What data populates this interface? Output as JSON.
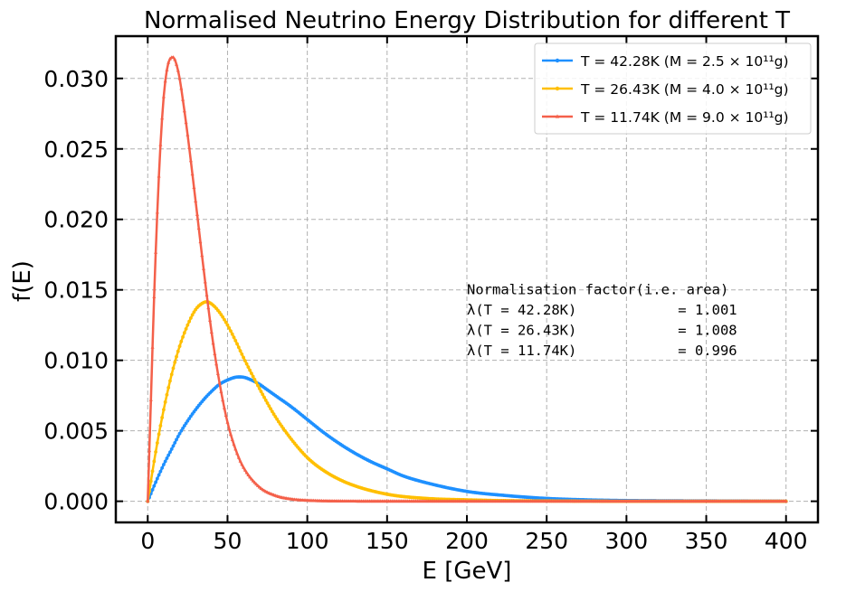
{
  "chart_data": {
    "type": "line",
    "title": "Normalised Neutrino Energy Distribution for different T",
    "xlabel": "E [GeV]",
    "ylabel": "f(E)",
    "xlim": [
      -20,
      420
    ],
    "ylim": [
      -0.0015,
      0.033
    ],
    "xticks": [
      0,
      50,
      100,
      150,
      200,
      250,
      300,
      350,
      400
    ],
    "xtick_labels": [
      "0",
      "50",
      "100",
      "150",
      "200",
      "250",
      "300",
      "350",
      "400"
    ],
    "yticks": [
      0.0,
      0.005,
      0.01,
      0.015,
      0.02,
      0.025,
      0.03
    ],
    "ytick_labels": [
      "0.000",
      "0.005",
      "0.010",
      "0.015",
      "0.020",
      "0.025",
      "0.030"
    ],
    "grid": true,
    "legend_position": "top-right",
    "series": [
      {
        "name": "T = 42.28K (M = 2.5 × 10¹¹g)",
        "color": "#1e90ff",
        "marker": "circle",
        "x": [
          0,
          5,
          10,
          15,
          20,
          25,
          30,
          35,
          40,
          45,
          50,
          55,
          57,
          60,
          65,
          70,
          75,
          80,
          90,
          100,
          110,
          120,
          130,
          140,
          150,
          160,
          175,
          200,
          225,
          250,
          275,
          300,
          325,
          350,
          375,
          400
        ],
        "y": [
          0.0,
          0.00135,
          0.0026,
          0.0037,
          0.0048,
          0.0057,
          0.0065,
          0.0072,
          0.0078,
          0.0083,
          0.0086,
          0.0088,
          0.00882,
          0.0088,
          0.0086,
          0.0083,
          0.0079,
          0.0075,
          0.0067,
          0.0058,
          0.0049,
          0.0041,
          0.0034,
          0.0028,
          0.0023,
          0.0018,
          0.0013,
          0.0007,
          0.0004,
          0.0002,
          0.0001,
          5e-05,
          3e-05,
          2e-05,
          1e-05,
          0.0
        ]
      },
      {
        "name": "T = 26.43K (M = 4.0 × 10¹¹g)",
        "color": "#ffbf00",
        "marker": "circle",
        "x": [
          0,
          5,
          10,
          15,
          20,
          25,
          30,
          35,
          37,
          40,
          45,
          50,
          55,
          60,
          70,
          80,
          90,
          100,
          110,
          125,
          150,
          175,
          200,
          225,
          250,
          300,
          350,
          400
        ],
        "y": [
          0.0,
          0.0035,
          0.0065,
          0.009,
          0.011,
          0.0125,
          0.0136,
          0.0141,
          0.01415,
          0.014,
          0.0134,
          0.0125,
          0.0114,
          0.0102,
          0.008,
          0.006,
          0.0044,
          0.0031,
          0.0022,
          0.0013,
          0.0005,
          0.0002,
          0.0001,
          4e-05,
          2e-05,
          0.0,
          0.0,
          0.0
        ]
      },
      {
        "name": "T = 11.74K (M = 9.0 × 10¹¹g)",
        "color": "#f4604a",
        "marker": "triangle",
        "x": [
          0,
          2,
          4,
          6,
          8,
          10,
          12,
          14,
          16,
          18,
          20,
          22,
          25,
          30,
          35,
          40,
          45,
          50,
          55,
          60,
          70,
          80,
          90,
          100,
          120,
          150,
          200,
          250,
          300,
          350,
          400
        ],
        "y": [
          0.0,
          0.0072,
          0.0145,
          0.0205,
          0.0253,
          0.0287,
          0.0306,
          0.0314,
          0.0315,
          0.031,
          0.03,
          0.0285,
          0.026,
          0.0213,
          0.0165,
          0.012,
          0.0084,
          0.0056,
          0.0037,
          0.0024,
          0.001,
          0.0004,
          0.00015,
          6e-05,
          1e-05,
          0.0,
          0.0,
          0.0,
          0.0,
          0.0,
          0.0
        ]
      }
    ],
    "annotation": {
      "lines": [
        "Normalisation factor(i.e. area)",
        "λ(T = 42.28K)            = 1.001",
        "λ(T = 26.43K)            = 1.008",
        "λ(T = 11.74K)            = 0.996"
      ],
      "x": 200,
      "y": 0.0147
    }
  }
}
